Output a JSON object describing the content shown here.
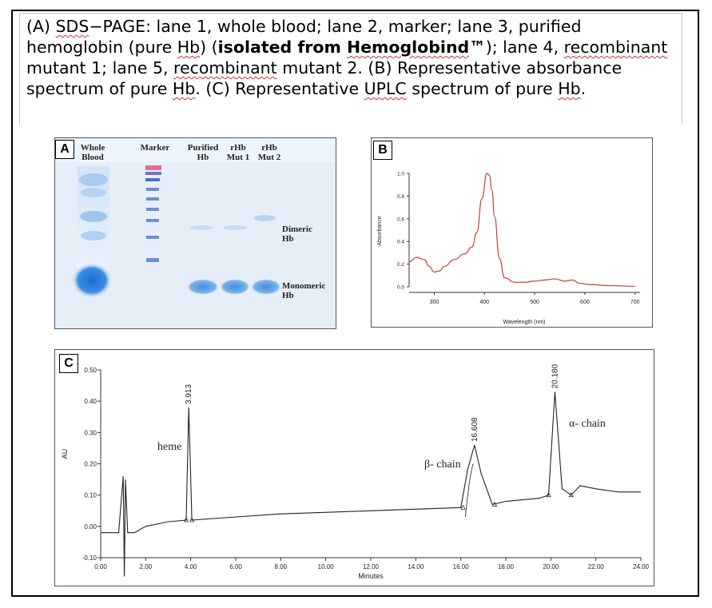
{
  "caption": {
    "p1": "(A) ",
    "sds": "SDS",
    "p2": "−PAGE: lane 1, whole blood; lane 2, marker; lane 3, purified hemoglobin (pure ",
    "hb1": "Hb",
    "p3": ") (",
    "bold_a": "isolated from ",
    "bold_b": "Hemoglobind",
    "bold_c": "™",
    "p4": "); lane 4, ",
    "w1": "recombinant",
    "p5": " mutant 1; lane 5, ",
    "w2": "recombinant",
    "p6": " mutant 2. (B) Representative absorbance spectrum of pure ",
    "hb2": "Hb",
    "p7": ". (C) Representative ",
    "w3": "UPLC",
    "p8": " spectrum of pure ",
    "hb3": "Hb",
    "p9": "."
  },
  "panel_a": {
    "label": "A",
    "lanes": [
      {
        "line1": "Whole",
        "line2": "Blood"
      },
      {
        "line1": "Marker",
        "line2": ""
      },
      {
        "line1": "Purified",
        "line2": "Hb"
      },
      {
        "line1": "rHb",
        "line2": "Mut 1"
      },
      {
        "line1": "rHb",
        "line2": "Mut 2"
      }
    ],
    "band_labels": [
      {
        "line1": "Dimeric",
        "line2": "Hb"
      },
      {
        "line1": "Monomeric",
        "line2": "Hb"
      }
    ]
  },
  "panel_b": {
    "label": "B",
    "xlabel": "Wavelength (nm)",
    "ylabel": "Absorbance",
    "xticks": [
      "300",
      "400",
      "500",
      "600",
      "700"
    ],
    "yticks": [
      "0.0",
      "0.2",
      "0.4",
      "0.6",
      "0.8",
      "1.0"
    ],
    "line_color": "#cc3b30"
  },
  "panel_c": {
    "label": "C",
    "xlabel": "Minutes",
    "ylabel": "AU",
    "xticks": [
      "0.00",
      "2.00",
      "4.00",
      "6.00",
      "8.00",
      "10.00",
      "12.00",
      "14.00",
      "16.00",
      "18.00",
      "20.00",
      "22.00",
      "24.00"
    ],
    "yticks": [
      "-0.10",
      "0.00",
      "0.10",
      "0.20",
      "0.30",
      "0.40",
      "0.50"
    ],
    "peak_labels": [
      "3.913",
      "16.608",
      "20.180"
    ],
    "annotations": [
      "heme",
      "β- chain",
      "α- chain"
    ]
  },
  "chart_data": [
    {
      "type": "line",
      "xlabel": "Wavelength (nm)",
      "ylabel": "Absorbance",
      "xlim": [
        250,
        710
      ],
      "ylim": [
        0.0,
        1.0
      ],
      "grid": false,
      "x": [
        250,
        265,
        280,
        290,
        300,
        310,
        320,
        340,
        360,
        375,
        385,
        395,
        405,
        410,
        415,
        420,
        430,
        440,
        460,
        480,
        500,
        520,
        540,
        560,
        575,
        590,
        610,
        650,
        700
      ],
      "y": [
        0.22,
        0.26,
        0.24,
        0.18,
        0.13,
        0.14,
        0.18,
        0.24,
        0.29,
        0.35,
        0.48,
        0.78,
        1.0,
        0.98,
        0.85,
        0.62,
        0.25,
        0.08,
        0.04,
        0.04,
        0.05,
        0.06,
        0.07,
        0.05,
        0.06,
        0.03,
        0.02,
        0.01,
        0.005
      ]
    },
    {
      "type": "line",
      "xlabel": "Minutes",
      "ylabel": "AU",
      "xlim": [
        0,
        24
      ],
      "ylim": [
        -0.1,
        0.5
      ],
      "grid": false,
      "x": [
        0.0,
        0.8,
        1.0,
        1.05,
        1.1,
        1.2,
        1.5,
        2.0,
        3.0,
        3.8,
        3.913,
        4.05,
        5.0,
        8.0,
        12.0,
        14.0,
        16.0,
        16.3,
        16.608,
        16.9,
        17.4,
        18.0,
        19.5,
        19.9,
        20.18,
        20.5,
        20.9,
        21.3,
        22.0,
        23.0,
        24.0
      ],
      "y": [
        -0.02,
        -0.02,
        0.16,
        -0.16,
        0.15,
        -0.02,
        -0.02,
        0.0,
        0.015,
        0.02,
        0.38,
        0.02,
        0.025,
        0.04,
        0.05,
        0.055,
        0.06,
        0.18,
        0.26,
        0.17,
        0.07,
        0.08,
        0.09,
        0.1,
        0.43,
        0.12,
        0.1,
        0.13,
        0.12,
        0.11,
        0.11
      ]
    }
  ]
}
